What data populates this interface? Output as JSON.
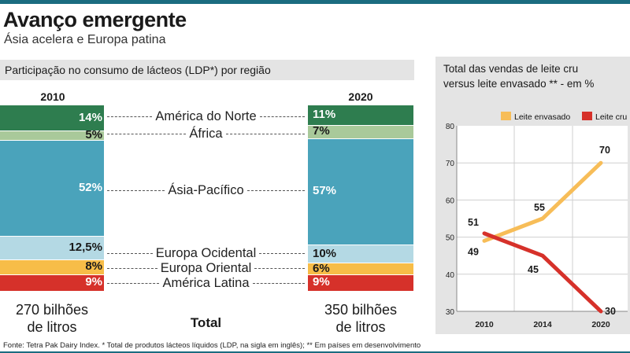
{
  "header": {
    "title": "Avanço emergente",
    "subtitle": "Ásia acelera e Europa patina"
  },
  "left_panel": {
    "heading": "Participação no consumo de lácteos (LDP*) por região",
    "total_label": "Total",
    "totals": [
      {
        "year": "2010",
        "line1": "270 bilhões",
        "line2": "de litros"
      },
      {
        "year": "2020",
        "line1": "350 bilhões",
        "line2": "de litros"
      }
    ]
  },
  "right_panel": {
    "title_line1": "Total das vendas de leite cru",
    "title_line2": "versus leite envasado ** - em %"
  },
  "footnote": "Fonte: Tetra Pak Dairy Index. * Total de produtos lácteos líquidos (LDP, na sigla em inglês); ** Em países em desenvolvimento",
  "chart_data": [
    {
      "type": "bar",
      "stacked": true,
      "title": "Participação no consumo de lácteos (LDP*) por região",
      "categories": [
        "2010",
        "2020"
      ],
      "series": [
        {
          "name": "América do Norte",
          "values": [
            14,
            11
          ],
          "labels": [
            "14%",
            "11%"
          ],
          "color": "#2e7d4f"
        },
        {
          "name": "África",
          "values": [
            5,
            7
          ],
          "labels": [
            "5%",
            "7%"
          ],
          "color": "#a9c99a"
        },
        {
          "name": "Ásia-Pacífico",
          "values": [
            52,
            57
          ],
          "labels": [
            "52%",
            "57%"
          ],
          "color": "#4aa3bb"
        },
        {
          "name": "Europa Ocidental",
          "values": [
            12.5,
            10
          ],
          "labels": [
            "12,5%",
            "10%"
          ],
          "color": "#b4d9e4"
        },
        {
          "name": "Europa Oriental",
          "values": [
            8,
            6
          ],
          "labels": [
            "8%",
            "6%"
          ],
          "color": "#f7bd48"
        },
        {
          "name": "América Latina",
          "values": [
            9,
            9
          ],
          "labels": [
            "9%",
            "9%"
          ],
          "color": "#d6312a"
        }
      ]
    },
    {
      "type": "line",
      "title": "Total das vendas de leite cru versus leite envasado ** - em %",
      "x": [
        "2010",
        "2014",
        "2020"
      ],
      "ylim": [
        30,
        80
      ],
      "yticks": [
        30,
        40,
        50,
        60,
        70,
        80
      ],
      "legend": "top",
      "series": [
        {
          "name": "Leite envasado",
          "values": [
            49,
            55,
            70
          ],
          "color": "#f7bd58"
        },
        {
          "name": "Leite cru",
          "values": [
            51,
            45,
            30
          ],
          "color": "#d6312a"
        }
      ]
    }
  ]
}
